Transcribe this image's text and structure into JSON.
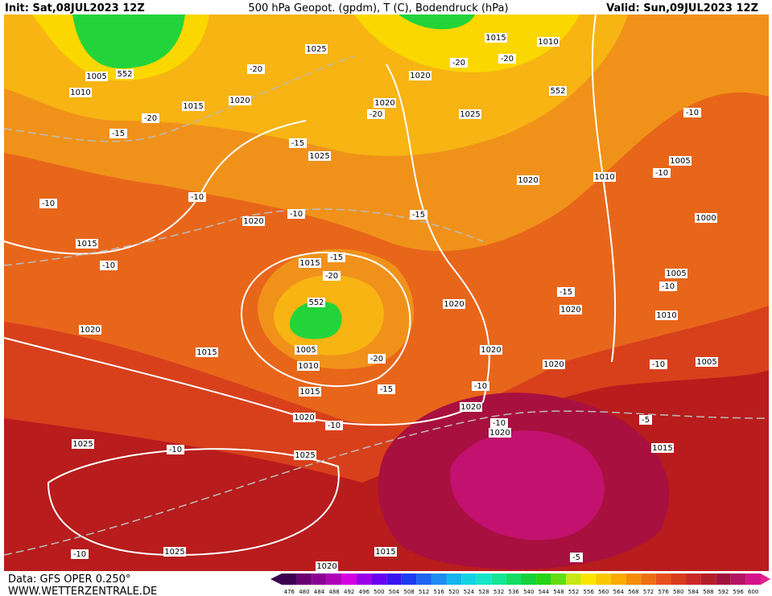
{
  "header": {
    "init": "Init: Sat,08JUL2023 12Z",
    "title": "500 hPa Geopot. (gpdm), T (C), Bodendruck (hPa)",
    "valid": "Valid: Sun,09JUL2023 12Z"
  },
  "footer": {
    "data": "Data: GFS OPER 0.250°",
    "url": "WWW.WETTERZENTRALE.DE"
  },
  "colorbar": {
    "labels": [
      476,
      480,
      484,
      488,
      492,
      496,
      500,
      504,
      508,
      512,
      516,
      520,
      524,
      528,
      532,
      536,
      540,
      544,
      548,
      552,
      556,
      560,
      564,
      568,
      572,
      576,
      580,
      584,
      588,
      592,
      596,
      600
    ]
  },
  "map_labels": [
    "1005",
    "1010",
    "552",
    "1015",
    "1020",
    "-20",
    "-15",
    "-20",
    "1025",
    "1020",
    "1020",
    "1025",
    "-20",
    "1025",
    "-15",
    "1015",
    "1010",
    "-20",
    "-20",
    "552",
    "1020",
    "1010",
    "1005",
    "-10",
    "-10",
    "1000",
    "-10",
    "-10",
    "1020",
    "-15",
    "-10",
    "1015",
    "-10",
    "1015",
    "-15",
    "-20",
    "552",
    "1020",
    "-15",
    "1020",
    "1005",
    "-10",
    "1010",
    "1020",
    "1015",
    "1005",
    "1010",
    "-20",
    "1015",
    "-15",
    "1020",
    "1020",
    "-10",
    "1005",
    "-10",
    "1020",
    "1020",
    "-10",
    "-5",
    "-10",
    "1020",
    "1025",
    "-10",
    "1025",
    "1015",
    "-10",
    "1025",
    "1015",
    "-5",
    "1020"
  ]
}
